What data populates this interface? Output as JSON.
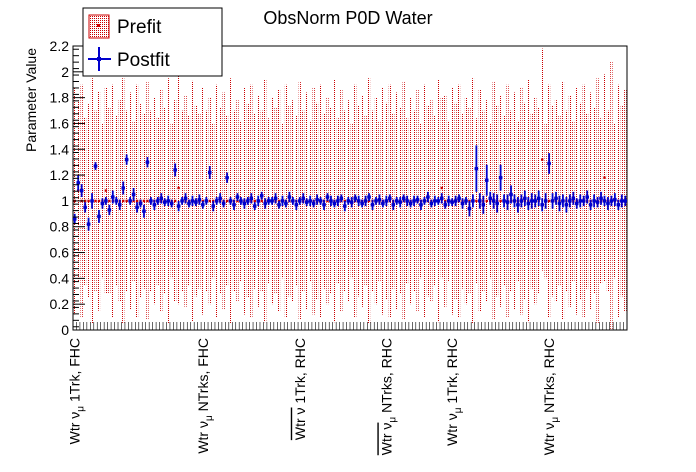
{
  "chart_data": {
    "type": "scatter",
    "title": "ObsNorm P0D Water",
    "ylabel": "Parameter Value",
    "xlabel": "",
    "ylim": [
      0,
      2.2
    ],
    "y_ticks": [
      "0",
      "0.2",
      "0.4",
      "0.6",
      "0.8",
      "1",
      "1.2",
      "1.4",
      "1.6",
      "1.8",
      "2",
      "2.2"
    ],
    "n_bins": 160,
    "bin_labels": [
      {
        "bin": 0,
        "text": "Wtr ν",
        "sub": "μ",
        "rest": " 1Trk, FHC",
        "bar": false
      },
      {
        "bin": 37,
        "text": "Wtr ν",
        "sub": "μ",
        "rest": " NTrks, FHC",
        "bar": false
      },
      {
        "bin": 65,
        "text": "Wtr ν",
        "sub": "",
        "rest": " 1Trk, RHC",
        "bar": true
      },
      {
        "bin": 90,
        "text": "Wtr ν",
        "sub": "μ",
        "rest": " NTrks, RHC",
        "bar": true
      },
      {
        "bin": 109,
        "text": "Wtr ν",
        "sub": "μ",
        "rest": " 1Trk, RHC",
        "bar": false
      },
      {
        "bin": 137,
        "text": "Wtr ν",
        "sub": "μ",
        "rest": " NTrks, RHC",
        "bar": false
      }
    ],
    "legend": {
      "placement": "top-left",
      "entries": [
        "Prefit",
        "Postfit"
      ]
    },
    "series": [
      {
        "name": "Prefit",
        "color": "#cc0000",
        "central": [
          1.0,
          1.08,
          1.0,
          1.0,
          1.0,
          1.0,
          1.0,
          1.0,
          1.0,
          1.08,
          1.0,
          1.0,
          1.0,
          1.0,
          1.0,
          1.0,
          1.0,
          1.0,
          1.0,
          1.0,
          1.0,
          1.0,
          1.0,
          1.0,
          1.0,
          1.0,
          1.0,
          1.0,
          1.0,
          1.0,
          1.1,
          1.0,
          1.0,
          1.0,
          1.0,
          1.0,
          1.0,
          1.0,
          1.0,
          1.0,
          1.0,
          1.0,
          1.0,
          1.0,
          1.0,
          1.0,
          1.0,
          1.0,
          1.0,
          1.0,
          1.0,
          1.0,
          1.0,
          1.0,
          1.0,
          1.0,
          1.0,
          1.0,
          1.0,
          1.0,
          1.0,
          1.0,
          1.0,
          1.0,
          1.0,
          1.0,
          1.0,
          1.0,
          1.0,
          1.0,
          1.0,
          1.0,
          1.0,
          1.0,
          1.0,
          1.0,
          1.0,
          1.0,
          1.0,
          1.0,
          1.0,
          1.0,
          1.0,
          1.0,
          1.0,
          1.0,
          1.0,
          1.0,
          1.0,
          1.0,
          1.0,
          1.0,
          1.0,
          1.0,
          1.0,
          1.0,
          1.0,
          1.0,
          1.0,
          1.0,
          1.0,
          1.0,
          1.0,
          1.0,
          1.0,
          1.0,
          1.1,
          1.0,
          1.0,
          1.0,
          1.0,
          1.0,
          1.0,
          1.0,
          1.0,
          1.0,
          1.0,
          1.0,
          1.0,
          1.0,
          1.0,
          1.0,
          1.0,
          1.0,
          1.0,
          1.0,
          1.0,
          1.0,
          1.0,
          1.0,
          1.0,
          1.0,
          1.0,
          1.0,
          1.0,
          1.32,
          1.0,
          1.0,
          1.0,
          1.0,
          1.0,
          1.0,
          1.0,
          1.0,
          1.0,
          1.0,
          1.0,
          1.0,
          1.0,
          1.0,
          1.0,
          1.0,
          1.0,
          1.18,
          1.0,
          1.0,
          1.0,
          1.0,
          1.0,
          1.0
        ],
        "error": [
          0.88,
          0.7,
          0.9,
          0.65,
          0.75,
          0.95,
          0.7,
          0.85,
          0.6,
          0.8,
          0.72,
          0.9,
          0.66,
          0.78,
          0.95,
          0.7,
          0.84,
          0.62,
          0.9,
          0.75,
          0.68,
          0.92,
          0.7,
          0.8,
          0.65,
          0.86,
          0.72,
          0.95,
          0.6,
          0.78,
          0.9,
          0.7,
          0.82,
          0.66,
          0.93,
          0.74,
          0.68,
          0.88,
          0.7,
          0.8,
          0.6,
          0.9,
          0.72,
          0.84,
          0.66,
          0.95,
          0.7,
          0.78,
          0.62,
          0.88,
          0.75,
          0.9,
          0.68,
          0.82,
          0.7,
          0.94,
          0.64,
          0.8,
          0.72,
          0.86,
          0.6,
          0.9,
          0.74,
          0.78,
          0.66,
          0.92,
          0.7,
          0.84,
          0.62,
          0.88,
          0.76,
          0.9,
          0.68,
          0.8,
          0.72,
          0.94,
          0.64,
          0.86,
          0.7,
          0.78,
          0.6,
          0.9,
          0.74,
          0.82,
          0.66,
          0.95,
          0.7,
          0.8,
          0.62,
          0.88,
          0.76,
          0.9,
          0.68,
          0.84,
          0.72,
          0.92,
          0.64,
          0.8,
          0.7,
          0.86,
          0.6,
          0.9,
          0.74,
          0.78,
          0.66,
          0.94,
          0.7,
          0.82,
          0.62,
          0.88,
          0.76,
          0.9,
          0.68,
          0.8,
          0.72,
          0.95,
          0.64,
          0.86,
          0.7,
          0.78,
          0.6,
          0.92,
          0.74,
          0.82,
          0.66,
          0.9,
          0.7,
          0.84,
          0.62,
          0.88,
          0.76,
          0.94,
          0.68,
          0.8,
          0.72,
          0.86,
          0.6,
          0.9,
          0.74,
          0.78,
          0.66,
          0.92,
          0.7,
          0.82,
          0.62,
          0.88,
          0.76,
          0.9,
          0.68,
          0.84,
          0.72,
          0.95,
          0.64,
          0.8,
          0.7,
          1.08,
          0.6,
          0.9,
          0.74,
          0.86
        ]
      },
      {
        "name": "Postfit",
        "color": "#0000cc",
        "central": [
          0.86,
          1.14,
          1.08,
          0.95,
          0.82,
          1.0,
          1.27,
          0.88,
          0.98,
          1.0,
          0.93,
          1.03,
          1.0,
          0.97,
          1.1,
          1.32,
          1.0,
          1.05,
          0.95,
          0.98,
          0.92,
          1.3,
          1.0,
          0.97,
          1.0,
          1.02,
          0.99,
          1.0,
          0.98,
          1.24,
          0.96,
          1.0,
          1.02,
          0.98,
          1.0,
          0.99,
          1.01,
          0.97,
          1.0,
          1.22,
          0.96,
          1.0,
          1.02,
          0.98,
          1.18,
          1.0,
          0.97,
          1.03,
          1.0,
          0.98,
          1.0,
          1.02,
          0.96,
          1.0,
          1.04,
          0.98,
          1.0,
          1.0,
          1.02,
          0.97,
          1.0,
          0.98,
          1.03,
          1.0,
          0.97,
          1.0,
          1.02,
          0.99,
          1.0,
          0.98,
          1.01,
          1.0,
          0.97,
          1.03,
          1.0,
          0.98,
          1.0,
          1.02,
          0.96,
          1.0,
          0.99,
          1.02,
          1.0,
          0.98,
          1.0,
          1.03,
          0.97,
          1.0,
          1.01,
          0.98,
          1.0,
          1.02,
          0.97,
          1.0,
          0.99,
          1.02,
          1.0,
          0.98,
          1.0,
          1.01,
          0.97,
          1.0,
          1.03,
          0.98,
          1.0,
          1.0,
          1.02,
          0.97,
          1.0,
          0.99,
          1.0,
          1.02,
          0.98,
          1.0,
          0.94,
          1.0,
          1.25,
          1.0,
          0.97,
          1.16,
          1.02,
          1.0,
          0.98,
          1.18,
          1.0,
          0.99,
          1.05,
          1.0,
          0.97,
          1.0,
          1.02,
          0.98,
          1.0,
          1.0,
          1.02,
          0.97,
          1.0,
          1.29,
          1.0,
          1.02,
          0.98,
          1.0,
          0.97,
          1.0,
          1.02,
          0.98,
          1.0,
          1.0,
          1.03,
          0.97,
          1.0,
          0.99,
          1.02,
          1.0,
          0.98,
          1.0,
          1.01,
          0.97,
          1.0,
          1.0
        ],
        "error": [
          0.04,
          0.06,
          0.05,
          0.04,
          0.05,
          0.06,
          0.03,
          0.05,
          0.04,
          0.03,
          0.04,
          0.05,
          0.03,
          0.04,
          0.05,
          0.04,
          0.03,
          0.05,
          0.04,
          0.03,
          0.05,
          0.04,
          0.03,
          0.04,
          0.03,
          0.04,
          0.03,
          0.04,
          0.03,
          0.05,
          0.04,
          0.03,
          0.04,
          0.03,
          0.04,
          0.03,
          0.04,
          0.03,
          0.03,
          0.05,
          0.04,
          0.03,
          0.04,
          0.03,
          0.04,
          0.03,
          0.04,
          0.03,
          0.03,
          0.04,
          0.03,
          0.04,
          0.03,
          0.04,
          0.03,
          0.04,
          0.03,
          0.03,
          0.04,
          0.03,
          0.04,
          0.03,
          0.04,
          0.03,
          0.04,
          0.03,
          0.04,
          0.03,
          0.04,
          0.03,
          0.04,
          0.03,
          0.04,
          0.03,
          0.04,
          0.03,
          0.04,
          0.03,
          0.04,
          0.03,
          0.04,
          0.03,
          0.04,
          0.03,
          0.04,
          0.03,
          0.04,
          0.03,
          0.04,
          0.03,
          0.04,
          0.03,
          0.04,
          0.03,
          0.04,
          0.03,
          0.04,
          0.03,
          0.04,
          0.03,
          0.04,
          0.03,
          0.04,
          0.03,
          0.04,
          0.03,
          0.04,
          0.03,
          0.04,
          0.03,
          0.04,
          0.03,
          0.04,
          0.03,
          0.06,
          0.05,
          0.18,
          0.06,
          0.07,
          0.12,
          0.05,
          0.06,
          0.07,
          0.1,
          0.05,
          0.06,
          0.07,
          0.05,
          0.06,
          0.05,
          0.06,
          0.05,
          0.06,
          0.05,
          0.06,
          0.05,
          0.06,
          0.08,
          0.06,
          0.05,
          0.06,
          0.05,
          0.06,
          0.05,
          0.05,
          0.04,
          0.05,
          0.04,
          0.05,
          0.04,
          0.05,
          0.04,
          0.05,
          0.04,
          0.05,
          0.04,
          0.05,
          0.04,
          0.05,
          0.04
        ]
      }
    ]
  }
}
